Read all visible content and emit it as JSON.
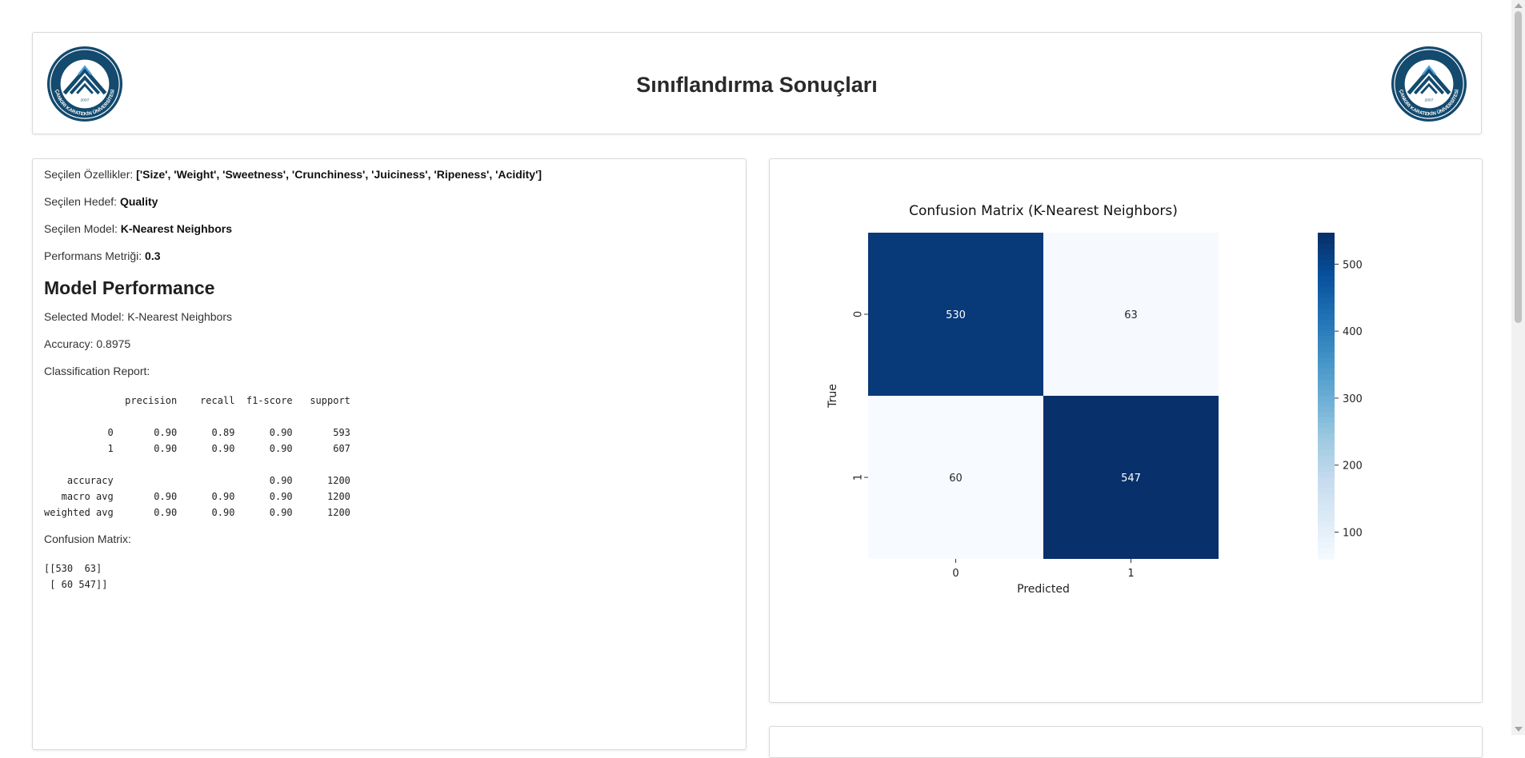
{
  "header": {
    "title": "Sınıflandırma Sonuçları",
    "logo_text": "ÇANKIRI KARATEKİN ÜNİVERSİTESİ",
    "logo_year": "2007"
  },
  "summary": {
    "features_label": "Seçilen Özellikler:",
    "features_value": "['Size', 'Weight', 'Sweetness', 'Crunchiness', 'Juiciness', 'Ripeness', 'Acidity']",
    "target_label": "Seçilen Hedef:",
    "target_value": "Quality",
    "model_label": "Seçilen Model:",
    "model_value": "K-Nearest Neighbors",
    "metric_label": "Performans Metriği:",
    "metric_value": "0.3"
  },
  "performance": {
    "heading": "Model Performance",
    "selected_model": "Selected Model: K-Nearest Neighbors",
    "accuracy": "Accuracy: 0.8975",
    "report_label": "Classification Report:",
    "report_text": "              precision    recall  f1-score   support\n\n           0       0.90      0.89      0.90       593\n           1       0.90      0.90      0.90       607\n\n    accuracy                           0.90      1200\n   macro avg       0.90      0.90      0.90      1200\nweighted avg       0.90      0.90      0.90      1200",
    "matrix_label": "Confusion Matrix:",
    "matrix_text": "[[530  63]\n [ 60 547]]"
  },
  "colors": {
    "heat_dark": "#08306b",
    "heat_light": "#f7fbff",
    "logo_blue": "#134a6e"
  },
  "chart_data": {
    "type": "heatmap",
    "title": "Confusion Matrix (K-Nearest Neighbors)",
    "xlabel": "Predicted",
    "ylabel": "True",
    "x_categories": [
      "0",
      "1"
    ],
    "y_categories": [
      "0",
      "1"
    ],
    "values": [
      [
        530,
        63
      ],
      [
        60,
        547
      ]
    ],
    "colormap": "Blues",
    "colorbar_range": [
      60,
      547
    ],
    "colorbar_ticks": [
      100,
      200,
      300,
      400,
      500
    ]
  }
}
